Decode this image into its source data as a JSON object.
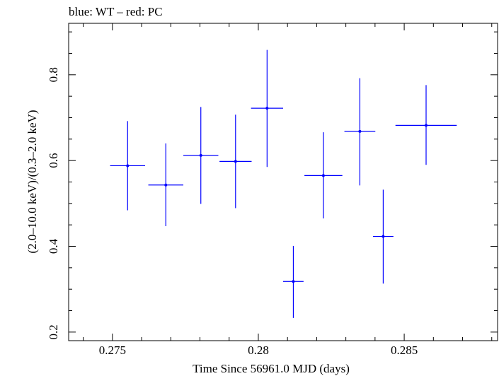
{
  "chart_data": {
    "type": "scatter",
    "title": "blue: WT – red: PC",
    "xlabel": "Time Since 56961.0 MJD (days)",
    "ylabel": "(2.0–10.0 keV)/(0.3–2.0 keV)",
    "xlim": [
      0.2735,
      0.2882
    ],
    "ylim": [
      0.18,
      0.92
    ],
    "xticks": [
      0.275,
      0.28,
      0.285
    ],
    "xtick_labels": [
      "0.275",
      "0.28",
      "0.285"
    ],
    "yticks": [
      0.2,
      0.4,
      0.6,
      0.8
    ],
    "ytick_labels": [
      "0.2",
      "0.4",
      "0.6",
      "0.8"
    ],
    "grid": false,
    "series": [
      {
        "color": "#0000ff",
        "points": [
          {
            "x": 0.27552,
            "xerr": 0.0006,
            "y": 0.588,
            "ylo": 0.484,
            "yhi": 0.692
          },
          {
            "x": 0.27683,
            "xerr": 0.0006,
            "y": 0.543,
            "ylo": 0.447,
            "yhi": 0.64
          },
          {
            "x": 0.27803,
            "xerr": 0.0006,
            "y": 0.612,
            "ylo": 0.499,
            "yhi": 0.725
          },
          {
            "x": 0.27922,
            "xerr": 0.00055,
            "y": 0.598,
            "ylo": 0.489,
            "yhi": 0.707
          },
          {
            "x": 0.2803,
            "xerr": 0.00055,
            "y": 0.722,
            "ylo": 0.585,
            "yhi": 0.858
          },
          {
            "x": 0.2812,
            "xerr": 0.00035,
            "y": 0.318,
            "ylo": 0.233,
            "yhi": 0.401
          },
          {
            "x": 0.28223,
            "xerr": 0.00065,
            "y": 0.565,
            "ylo": 0.465,
            "yhi": 0.666
          },
          {
            "x": 0.28348,
            "xerr": 0.00053,
            "y": 0.668,
            "ylo": 0.542,
            "yhi": 0.792
          },
          {
            "x": 0.28428,
            "xerr": 0.00035,
            "y": 0.423,
            "ylo": 0.313,
            "yhi": 0.532
          },
          {
            "x": 0.28575,
            "xerr": 0.00105,
            "y": 0.682,
            "ylo": 0.59,
            "yhi": 0.776
          }
        ]
      }
    ]
  }
}
